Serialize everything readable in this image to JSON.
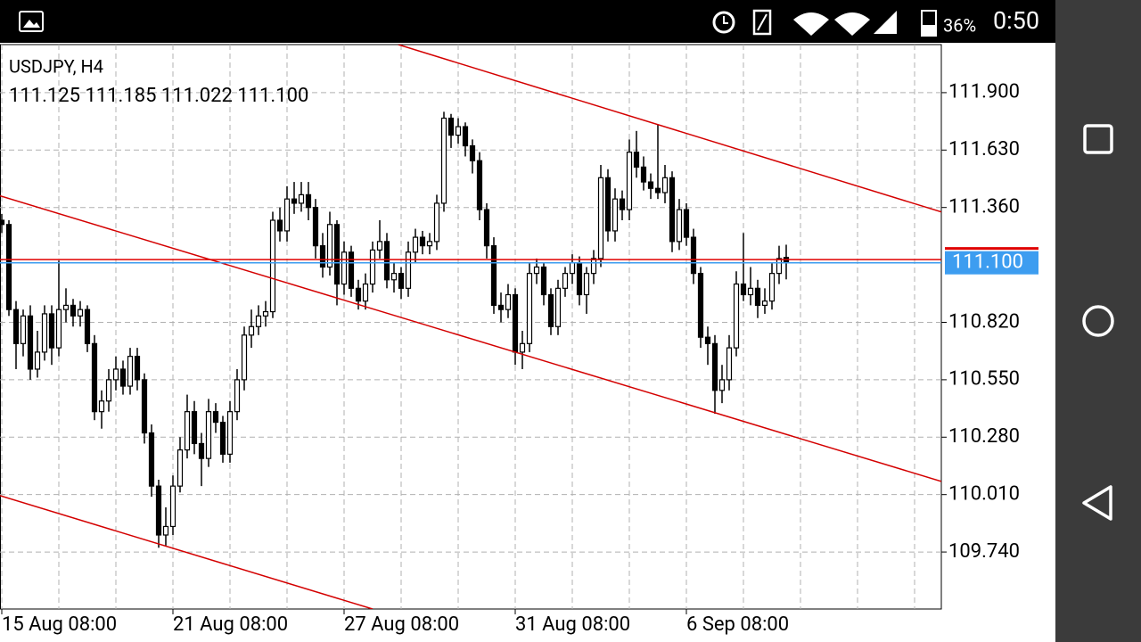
{
  "status_bar": {
    "battery": "36%",
    "time": "0:50"
  },
  "chart_data": {
    "type": "candlestick",
    "title": "USDJPY, H4",
    "subtitle": "111.125 111.185 111.022 111.100",
    "categories": [
      "15 Aug 08:00",
      null,
      null,
      null,
      null,
      null,
      null,
      null,
      null,
      null,
      null,
      null,
      null,
      null,
      null,
      null,
      null,
      null,
      null,
      null,
      null,
      null,
      null,
      null,
      "21 Aug 08:00",
      null,
      null,
      null,
      null,
      null,
      null,
      null,
      null,
      null,
      null,
      null,
      null,
      null,
      null,
      null,
      null,
      null,
      null,
      null,
      null,
      null,
      null,
      null,
      "27 Aug 08:00",
      null,
      null,
      null,
      null,
      null,
      null,
      null,
      null,
      null,
      null,
      null,
      null,
      null,
      null,
      null,
      null,
      null,
      null,
      null,
      null,
      null,
      null,
      null,
      "31 Aug 08:00",
      null,
      null,
      null,
      null,
      null,
      null,
      null,
      null,
      null,
      null,
      null,
      null,
      null,
      null,
      null,
      null,
      null,
      null,
      null,
      null,
      null,
      null,
      null,
      "6 Sep 08:00",
      null,
      null,
      null,
      null,
      null,
      null,
      null,
      null,
      null,
      null,
      null,
      null,
      null,
      null
    ],
    "candles": [
      [
        111.3,
        111.33,
        111.24,
        111.28
      ],
      [
        111.28,
        111.3,
        110.85,
        110.88
      ],
      [
        110.88,
        110.92,
        110.6,
        110.72
      ],
      [
        110.72,
        110.88,
        110.66,
        110.85
      ],
      [
        110.85,
        110.9,
        110.55,
        110.6
      ],
      [
        110.6,
        110.78,
        110.56,
        110.68
      ],
      [
        110.68,
        110.9,
        110.64,
        110.86
      ],
      [
        110.86,
        110.9,
        110.62,
        110.7
      ],
      [
        110.7,
        111.11,
        110.66,
        110.88
      ],
      [
        110.88,
        110.98,
        110.82,
        110.9
      ],
      [
        110.9,
        110.93,
        110.8,
        110.85
      ],
      [
        110.85,
        110.92,
        110.8,
        110.88
      ],
      [
        110.88,
        110.9,
        110.68,
        110.72
      ],
      [
        110.72,
        110.76,
        110.36,
        110.4
      ],
      [
        110.4,
        110.5,
        110.32,
        110.45
      ],
      [
        110.45,
        110.6,
        110.4,
        110.55
      ],
      [
        110.55,
        110.66,
        110.5,
        110.6
      ],
      [
        110.6,
        110.64,
        110.48,
        110.52
      ],
      [
        110.52,
        110.7,
        110.48,
        110.66
      ],
      [
        110.66,
        110.7,
        110.5,
        110.55
      ],
      [
        110.55,
        110.58,
        110.25,
        110.3
      ],
      [
        110.3,
        110.34,
        110.0,
        110.05
      ],
      [
        110.05,
        110.08,
        109.76,
        109.82
      ],
      [
        109.82,
        109.95,
        109.77,
        109.86
      ],
      [
        109.86,
        110.1,
        109.82,
        110.05
      ],
      [
        110.05,
        110.28,
        110.02,
        110.22
      ],
      [
        110.22,
        110.48,
        110.18,
        110.4
      ],
      [
        110.4,
        110.45,
        110.2,
        110.25
      ],
      [
        110.25,
        110.3,
        110.05,
        110.18
      ],
      [
        110.18,
        110.46,
        110.14,
        110.4
      ],
      [
        110.4,
        110.44,
        110.3,
        110.35
      ],
      [
        110.35,
        110.38,
        110.16,
        110.2
      ],
      [
        110.2,
        110.45,
        110.16,
        110.4
      ],
      [
        110.4,
        110.6,
        110.36,
        110.55
      ],
      [
        110.55,
        110.8,
        110.5,
        110.76
      ],
      [
        110.76,
        110.88,
        110.7,
        110.8
      ],
      [
        110.8,
        110.9,
        110.76,
        110.85
      ],
      [
        110.85,
        110.92,
        110.8,
        110.87
      ],
      [
        110.87,
        111.34,
        110.84,
        111.3
      ],
      [
        111.3,
        111.36,
        111.2,
        111.25
      ],
      [
        111.25,
        111.46,
        111.2,
        111.4
      ],
      [
        111.4,
        111.48,
        111.33,
        111.38
      ],
      [
        111.38,
        111.48,
        111.34,
        111.42
      ],
      [
        111.42,
        111.48,
        111.3,
        111.36
      ],
      [
        111.36,
        111.4,
        111.12,
        111.18
      ],
      [
        111.18,
        111.24,
        111.03,
        111.08
      ],
      [
        111.08,
        111.34,
        111.04,
        111.28
      ],
      [
        111.28,
        111.3,
        110.9,
        111.0
      ],
      [
        111.0,
        111.2,
        110.95,
        111.15
      ],
      [
        111.15,
        111.18,
        110.94,
        110.98
      ],
      [
        110.98,
        111.02,
        110.88,
        110.92
      ],
      [
        110.92,
        111.05,
        110.88,
        111.0
      ],
      [
        111.0,
        111.2,
        110.96,
        111.16
      ],
      [
        111.16,
        111.3,
        111.12,
        111.2
      ],
      [
        111.2,
        111.24,
        110.98,
        111.02
      ],
      [
        111.02,
        111.1,
        110.96,
        111.05
      ],
      [
        111.05,
        111.08,
        110.93,
        110.98
      ],
      [
        110.98,
        111.2,
        110.94,
        111.15
      ],
      [
        111.15,
        111.26,
        111.1,
        111.22
      ],
      [
        111.22,
        111.25,
        111.14,
        111.18
      ],
      [
        111.18,
        111.24,
        111.14,
        111.2
      ],
      [
        111.2,
        111.42,
        111.16,
        111.38
      ],
      [
        111.38,
        111.81,
        111.34,
        111.78
      ],
      [
        111.78,
        111.8,
        111.64,
        111.7
      ],
      [
        111.7,
        111.78,
        111.66,
        111.74
      ],
      [
        111.74,
        111.76,
        111.6,
        111.65
      ],
      [
        111.65,
        111.68,
        111.52,
        111.58
      ],
      [
        111.58,
        111.62,
        111.3,
        111.35
      ],
      [
        111.35,
        111.38,
        111.12,
        111.18
      ],
      [
        111.18,
        111.22,
        110.86,
        110.9
      ],
      [
        110.9,
        110.96,
        110.82,
        110.88
      ],
      [
        110.88,
        111.0,
        110.84,
        110.95
      ],
      [
        110.95,
        110.98,
        110.62,
        110.68
      ],
      [
        110.68,
        110.78,
        110.6,
        110.72
      ],
      [
        110.72,
        111.1,
        110.68,
        111.05
      ],
      [
        111.05,
        111.12,
        111.0,
        111.08
      ],
      [
        111.08,
        111.1,
        110.9,
        110.95
      ],
      [
        110.95,
        110.98,
        110.76,
        110.8
      ],
      [
        110.8,
        111.02,
        110.76,
        110.98
      ],
      [
        110.98,
        111.08,
        110.94,
        111.05
      ],
      [
        111.05,
        111.14,
        111.0,
        111.1
      ],
      [
        111.1,
        111.13,
        110.9,
        110.95
      ],
      [
        110.95,
        111.08,
        110.86,
        111.05
      ],
      [
        111.05,
        111.16,
        111.0,
        111.12
      ],
      [
        111.12,
        111.56,
        111.08,
        111.5
      ],
      [
        111.5,
        111.54,
        111.2,
        111.25
      ],
      [
        111.25,
        111.45,
        111.2,
        111.4
      ],
      [
        111.4,
        111.44,
        111.3,
        111.35
      ],
      [
        111.35,
        111.68,
        111.3,
        111.62
      ],
      [
        111.62,
        111.72,
        111.5,
        111.55
      ],
      [
        111.55,
        111.6,
        111.44,
        111.48
      ],
      [
        111.48,
        111.52,
        111.4,
        111.45
      ],
      [
        111.45,
        111.75,
        111.4,
        111.43
      ],
      [
        111.43,
        111.56,
        111.38,
        111.5
      ],
      [
        111.5,
        111.53,
        111.15,
        111.2
      ],
      [
        111.2,
        111.4,
        111.16,
        111.35
      ],
      [
        111.35,
        111.38,
        111.18,
        111.22
      ],
      [
        111.22,
        111.26,
        111.0,
        111.05
      ],
      [
        111.05,
        111.08,
        110.7,
        110.75
      ],
      [
        110.75,
        110.8,
        110.62,
        110.72
      ],
      [
        110.72,
        110.76,
        110.39,
        110.5
      ],
      [
        110.5,
        110.62,
        110.44,
        110.55
      ],
      [
        110.55,
        110.76,
        110.5,
        110.7
      ],
      [
        110.7,
        111.06,
        110.66,
        111.0
      ],
      [
        111.0,
        111.24,
        110.92,
        110.95
      ],
      [
        110.95,
        111.08,
        110.9,
        110.98
      ],
      [
        110.98,
        111.02,
        110.84,
        110.9
      ],
      [
        110.9,
        110.98,
        110.86,
        110.92
      ],
      [
        110.92,
        111.1,
        110.88,
        111.05
      ],
      [
        111.05,
        111.18,
        111.0,
        111.12
      ],
      [
        111.125,
        111.185,
        111.022,
        111.1
      ]
    ],
    "up_color": "#ffffff",
    "down_color": "#000000",
    "wick_color": "#000000",
    "ylim": [
      109.472,
      112.126
    ],
    "yticks": [
      {
        "value": 109.74,
        "label": "109.740"
      },
      {
        "value": 110.01,
        "label": "110.010"
      },
      {
        "value": 110.28,
        "label": "110.280"
      },
      {
        "value": 110.55,
        "label": "110.550"
      },
      {
        "value": 110.82,
        "label": "110.820"
      },
      {
        "value": 111.36,
        "label": "111.360"
      },
      {
        "value": 111.63,
        "label": "111.630"
      },
      {
        "value": 111.9,
        "label": "111.900"
      }
    ],
    "last_price": {
      "value": 111.1,
      "label": "111.100",
      "color": "#3d9df0"
    },
    "ask_price": {
      "value": 111.115,
      "color": "#e00000"
    },
    "trendlines": [
      {
        "x": [
          55.6,
          131.75
        ],
        "y": [
          112.126,
          111.339
        ],
        "color": "#d40000"
      },
      {
        "x": [
          -0.25,
          131.75
        ],
        "y": [
          111.415,
          110.072
        ],
        "color": "#d40000"
      },
      {
        "x": [
          -0.25,
          52
        ],
        "y": [
          110.005,
          109.472
        ],
        "color": "#d40000"
      }
    ],
    "grid": true
  }
}
